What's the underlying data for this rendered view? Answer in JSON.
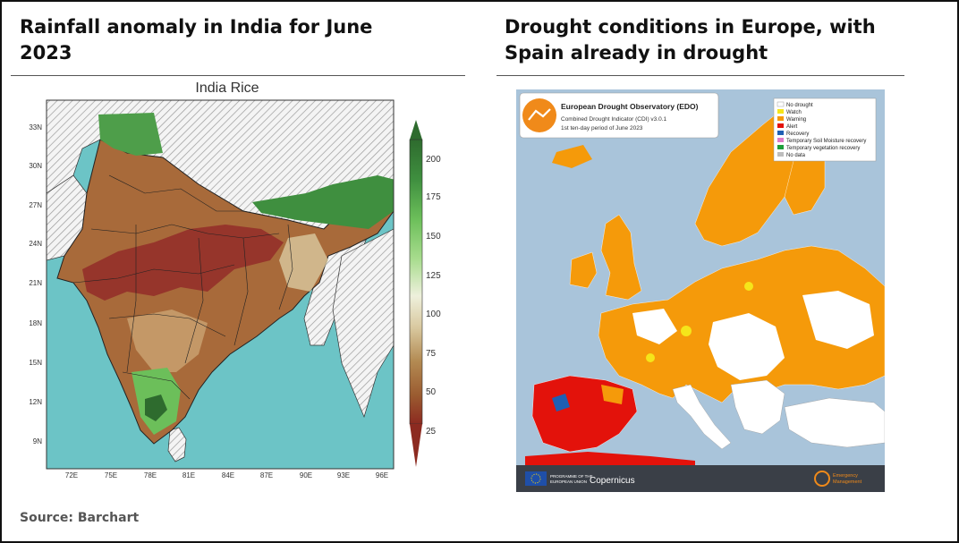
{
  "left_panel": {
    "title_line1": "Rainfall anomaly in India for June",
    "title_line2": "2023",
    "map_title": "India Rice",
    "lat_labels": [
      "33N",
      "30N",
      "27N",
      "24N",
      "21N",
      "18N",
      "15N",
      "12N",
      "9N"
    ],
    "lon_labels": [
      "72E",
      "75E",
      "78E",
      "81E",
      "84E",
      "87E",
      "90E",
      "93E",
      "96E"
    ],
    "colorbar": {
      "ticks": [
        200,
        175,
        150,
        125,
        100,
        75,
        50,
        25
      ],
      "colors": [
        "#2e6b2e",
        "#3f8f3f",
        "#6cbf5a",
        "#a8dc8e",
        "#e8ecd6",
        "#d9c9a0",
        "#b38a52",
        "#9a5b30",
        "#8c2a20"
      ]
    },
    "colors": {
      "ocean": "#6cc4c6",
      "land_dry": "#a86a3a",
      "land_severe": "#94302a",
      "land_wet": "#4e9e4a",
      "hatch": "#999999"
    }
  },
  "right_panel": {
    "title_line1": "Drought conditions in Europe, with",
    "title_line2": "Spain already in drought",
    "map_header": {
      "title": "European Drought Observatory (EDO)",
      "subtitle1": "Combined Drought Indicator (CDI) v3.0.1",
      "subtitle2": "1st ten-day period of June 2023"
    },
    "legend": [
      {
        "label": "No drought",
        "color": "#ffffff"
      },
      {
        "label": "Watch",
        "color": "#f5e51a"
      },
      {
        "label": "Warning",
        "color": "#f59a0a"
      },
      {
        "label": "Alert",
        "color": "#e3120b"
      },
      {
        "label": "Recovery",
        "color": "#1f5fb4"
      },
      {
        "label": "Temporary Soil Moisture recovery",
        "color": "#e07ac8"
      },
      {
        "label": "Temporary vegetation recovery",
        "color": "#1e9e3a"
      },
      {
        "label": "No data",
        "color": "#bdbdbd"
      }
    ],
    "footer": {
      "eu_text1": "PROGRAMME OF THE",
      "eu_text2": "EUROPEAN UNION",
      "copernicus": "Copernicus",
      "em_text1": "Emergency",
      "em_text2": "Management"
    },
    "colors": {
      "sea": "#a9c4da",
      "land_warning": "#f59a0a",
      "land_none": "#ffffff",
      "land_alert": "#e3120b",
      "footer": "#3a3f47"
    }
  },
  "source": "Source: Barchart"
}
